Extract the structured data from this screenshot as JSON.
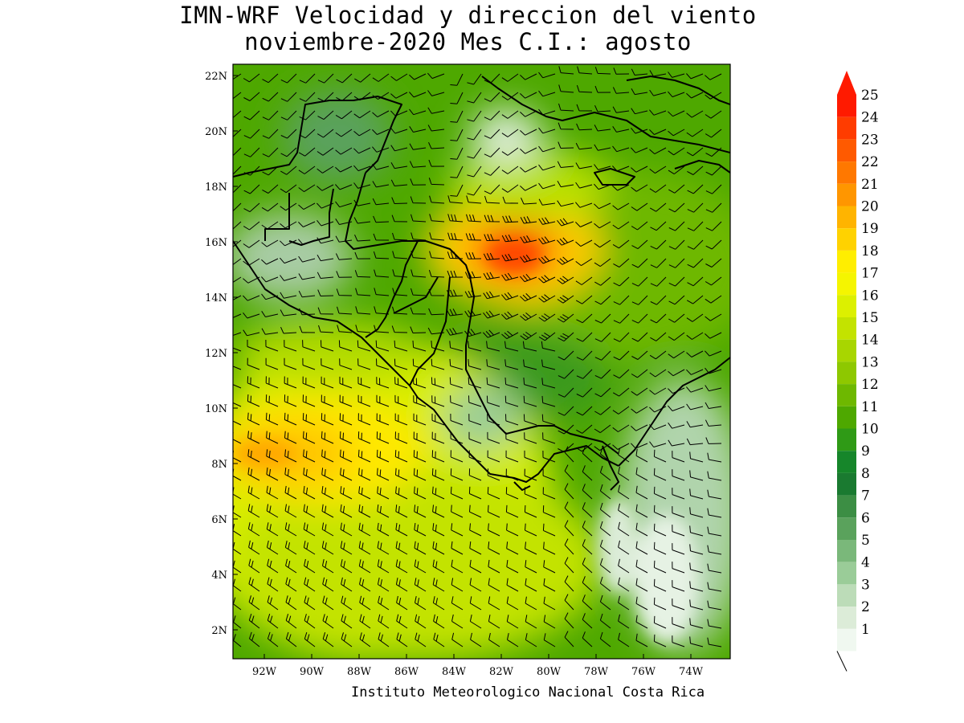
{
  "title": {
    "line1": "IMN-WRF Velocidad y direccion del viento",
    "line2": "noviembre-2020 Mes C.I.: agosto"
  },
  "footer": "Instituto Meteorologico Nacional Costa Rica",
  "axes": {
    "lat_labels": [
      "22N",
      "20N",
      "18N",
      "16N",
      "14N",
      "12N",
      "10N",
      "8N",
      "6N",
      "4N",
      "2N"
    ],
    "lon_labels": [
      "92W",
      "90W",
      "88W",
      "86W",
      "84W",
      "82W",
      "80W",
      "78W",
      "76W",
      "74W"
    ]
  },
  "colorbar": {
    "labels": [
      "25",
      "24",
      "23",
      "22",
      "21",
      "20",
      "19",
      "18",
      "17",
      "16",
      "15",
      "14",
      "13",
      "12",
      "11",
      "10",
      "9",
      "8",
      "7",
      "6",
      "5",
      "4",
      "3",
      "2",
      "1"
    ],
    "colors": [
      "#ff1a00",
      "#ff3c00",
      "#ff5a00",
      "#ff7800",
      "#ff9600",
      "#ffb400",
      "#ffd200",
      "#ffee00",
      "#f5f500",
      "#dcf000",
      "#c3e300",
      "#a8d600",
      "#8ec800",
      "#6eb800",
      "#4ea800",
      "#2f9a16",
      "#16862a",
      "#1a7a30",
      "#3c8e44",
      "#5aa25c",
      "#7ab87a",
      "#9acc98",
      "#bcdcb8",
      "#dcecd8",
      "#f0f8f0"
    ]
  }
}
